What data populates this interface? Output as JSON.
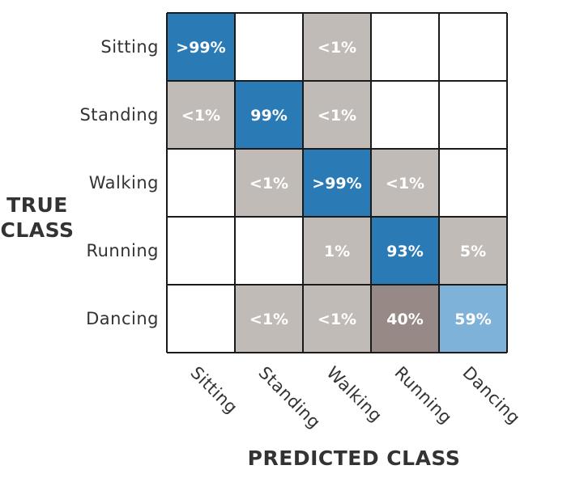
{
  "chart_data": {
    "type": "heatmap",
    "ylabel": [
      "TRUE",
      "CLASS"
    ],
    "xlabel": "PREDICTED CLASS",
    "rows": [
      "Sitting",
      "Standing",
      "Walking",
      "Running",
      "Dancing"
    ],
    "columns": [
      "Sitting",
      "Standing",
      "Walking",
      "Running",
      "Dancing"
    ],
    "cells": [
      [
        ">99%",
        "",
        "<1%",
        "",
        ""
      ],
      [
        "<1%",
        "99%",
        "<1%",
        "",
        ""
      ],
      [
        "",
        "<1%",
        ">99%",
        "<1%",
        ""
      ],
      [
        "",
        "",
        "1%",
        "93%",
        "5%"
      ],
      [
        "",
        "<1%",
        "<1%",
        "40%",
        "59%"
      ]
    ],
    "values": [
      [
        99.5,
        0,
        0.5,
        0,
        0
      ],
      [
        0.5,
        99,
        0.5,
        0,
        0
      ],
      [
        0,
        0.5,
        99.5,
        0.5,
        0
      ],
      [
        0,
        0,
        1,
        93,
        5
      ],
      [
        0,
        0.5,
        0.5,
        40,
        59
      ]
    ],
    "colors": {
      "diagonal": "#2a7ab5",
      "off_diagonal": "#c1bbb7",
      "highlight_off": "#978a86",
      "light_diagonal": "#7fb2d8",
      "empty": "#ffffff",
      "grid": "#1a1a1a"
    }
  }
}
